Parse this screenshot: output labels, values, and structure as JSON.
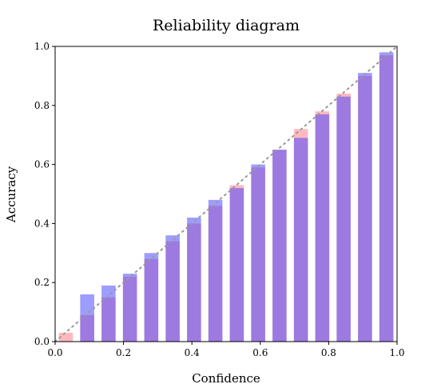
{
  "chart_data": {
    "type": "bar",
    "title": "Reliability diagram",
    "xlabel": "Confidence",
    "ylabel": "Accuracy",
    "xlim": [
      0.0,
      1.0
    ],
    "ylim": [
      0.0,
      1.0
    ],
    "x_ticks": [
      "0.0",
      "0.2",
      "0.4",
      "0.6",
      "0.8",
      "1.0"
    ],
    "y_ticks": [
      "0.0",
      "0.2",
      "0.4",
      "0.6",
      "0.8",
      "1.0"
    ],
    "bin_centers": [
      0.0317,
      0.0938,
      0.1563,
      0.2188,
      0.2813,
      0.3438,
      0.4063,
      0.4688,
      0.5313,
      0.5938,
      0.6563,
      0.7188,
      0.7813,
      0.8438,
      0.9063,
      0.9688
    ],
    "bin_width": 0.05,
    "series": [
      {
        "color": "#ff7f8a",
        "values": [
          0.03,
          0.09,
          0.15,
          0.22,
          0.28,
          0.34,
          0.4,
          0.46,
          0.53,
          0.59,
          0.65,
          0.72,
          0.78,
          0.84,
          0.9,
          0.97
        ]
      },
      {
        "color": "#3b3bff",
        "values": [
          0.0,
          0.16,
          0.19,
          0.23,
          0.3,
          0.36,
          0.42,
          0.48,
          0.52,
          0.6,
          0.65,
          0.69,
          0.77,
          0.83,
          0.91,
          0.98
        ]
      }
    ],
    "diagonal": {
      "points": [
        [
          0,
          0
        ],
        [
          1,
          1
        ]
      ],
      "style": "dotted",
      "color": "#999999"
    },
    "grid": false,
    "legend": "none"
  }
}
